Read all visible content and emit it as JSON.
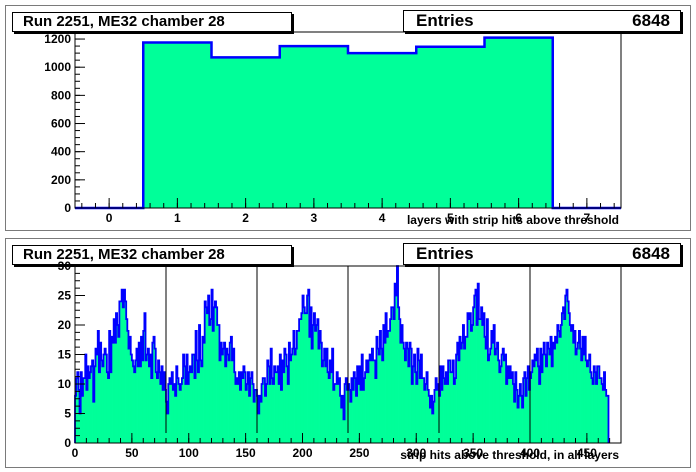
{
  "chart_data": [
    {
      "type": "histogram",
      "title": "Run 2251, ME32 chamber 28",
      "stats": {
        "label": "Entries",
        "value": "6848"
      },
      "xlabel": "layers with strip hits above threshold",
      "ylabel": "",
      "xlim": [
        -0.5,
        7.5
      ],
      "ylim": [
        0,
        1250
      ],
      "x_ticks": [
        0,
        1,
        2,
        3,
        4,
        5,
        6,
        7
      ],
      "y_ticks": [
        0,
        200,
        400,
        600,
        800,
        1000,
        1200
      ],
      "bins": [
        {
          "low": -0.5,
          "high": 0.5,
          "value": 0
        },
        {
          "low": 0.5,
          "high": 1.5,
          "value": 1175
        },
        {
          "low": 1.5,
          "high": 2.5,
          "value": 1070
        },
        {
          "low": 2.5,
          "high": 3.5,
          "value": 1150
        },
        {
          "low": 3.5,
          "high": 4.5,
          "value": 1100
        },
        {
          "low": 4.5,
          "high": 5.5,
          "value": 1145
        },
        {
          "low": 5.5,
          "high": 6.5,
          "value": 1210
        },
        {
          "low": 6.5,
          "high": 7.5,
          "value": 0
        }
      ],
      "fill_color": "#00ff99",
      "line_color": "#0000ff"
    },
    {
      "type": "histogram",
      "title": "Run 2251, ME32 chamber 28",
      "stats": {
        "label": "Entries",
        "value": "6848"
      },
      "xlabel": "strip hits above threshold, in all layers",
      "ylabel": "",
      "xlim": [
        0,
        480
      ],
      "ylim": [
        0,
        30
      ],
      "x_ticks": [
        0,
        50,
        100,
        150,
        200,
        250,
        300,
        350,
        400,
        450
      ],
      "y_ticks": [
        0,
        5,
        10,
        15,
        20,
        25,
        30
      ],
      "vertical_lines": [
        80,
        160,
        240,
        320,
        400
      ],
      "bin_width": 1,
      "values": [
        8,
        11,
        12,
        9,
        5,
        12,
        8,
        11,
        11,
        15,
        9,
        13,
        11,
        12,
        13,
        14,
        7,
        13,
        16,
        15,
        19,
        12,
        17,
        14,
        13,
        15,
        16,
        15,
        12,
        11,
        19,
        12,
        18,
        17,
        21,
        17,
        22,
        20,
        18,
        24,
        24,
        26,
        23,
        26,
        24,
        21,
        19,
        16,
        18,
        15,
        14,
        13,
        12,
        14,
        16,
        13,
        17,
        13,
        18,
        14,
        19,
        22,
        14,
        15,
        16,
        13,
        15,
        11,
        17,
        18,
        16,
        12,
        11,
        14,
        12,
        10,
        13,
        9,
        12,
        9,
        7,
        5,
        10,
        11,
        10,
        12,
        9,
        10,
        8,
        13,
        11,
        10,
        9,
        10,
        11,
        15,
        13,
        10,
        15,
        10,
        12,
        13,
        12,
        15,
        15,
        11,
        19,
        14,
        12,
        20,
        14,
        13,
        18,
        17,
        24,
        23,
        22,
        25,
        20,
        21,
        26,
        19,
        23,
        24,
        23,
        20,
        20,
        14,
        17,
        15,
        16,
        17,
        13,
        16,
        15,
        14,
        17,
        18,
        14,
        16,
        12,
        10,
        11,
        10,
        12,
        9,
        12,
        11,
        13,
        12,
        9,
        10,
        12,
        8,
        11,
        12,
        10,
        7,
        9,
        9,
        8,
        5,
        8,
        7,
        10,
        11,
        11,
        8,
        10,
        14,
        13,
        10,
        16,
        11,
        10,
        13,
        12,
        12,
        13,
        10,
        15,
        9,
        14,
        12,
        16,
        15,
        13,
        10,
        17,
        14,
        15,
        16,
        19,
        15,
        16,
        19,
        19,
        21,
        21,
        22,
        25,
        23,
        22,
        22,
        25,
        26,
        18,
        23,
        16,
        20,
        22,
        19,
        20,
        21,
        16,
        19,
        17,
        13,
        14,
        16,
        13,
        16,
        12,
        11,
        14,
        12,
        16,
        9,
        10,
        10,
        12,
        10,
        11,
        8,
        6,
        8,
        4,
        10,
        11,
        9,
        10,
        9,
        7,
        11,
        9,
        12,
        11,
        8,
        13,
        10,
        13,
        9,
        15,
        9,
        11,
        12,
        14,
        12,
        14,
        15,
        14,
        16,
        14,
        14,
        11,
        18,
        16,
        15,
        19,
        16,
        14,
        20,
        17,
        22,
        18,
        19,
        19,
        21,
        23,
        23,
        21,
        27,
        25,
        30,
        23,
        21,
        17,
        20,
        17,
        16,
        14,
        17,
        16,
        13,
        17,
        16,
        10,
        13,
        15,
        12,
        10,
        16,
        14,
        11,
        15,
        11,
        11,
        9,
        10,
        12,
        9,
        8,
        6,
        8,
        5,
        7,
        9,
        11,
        9,
        10,
        8,
        13,
        9,
        13,
        11,
        10,
        12,
        10,
        14,
        14,
        12,
        12,
        14,
        10,
        11,
        15,
        17,
        14,
        18,
        16,
        17,
        20,
        16,
        18,
        18,
        22,
        21,
        22,
        19,
        20,
        23,
        25,
        26,
        20,
        27,
        21,
        21,
        23,
        20,
        22,
        18,
        16,
        21,
        14,
        15,
        16,
        19,
        17,
        20,
        15,
        16,
        17,
        14,
        12,
        13,
        15,
        16,
        14,
        15,
        10,
        13,
        11,
        13,
        11,
        12,
        10,
        7,
        12,
        9,
        6,
        8,
        10,
        8,
        6,
        11,
        12,
        8,
        11,
        13,
        9,
        11,
        12,
        14,
        13,
        15,
        14,
        16,
        13,
        10,
        16,
        12,
        15,
        17,
        15,
        13,
        17,
        16,
        15,
        18,
        13,
        17,
        16,
        18,
        17,
        20,
        19,
        18,
        20,
        22,
        23,
        21,
        25,
        26,
        24,
        22,
        20,
        19,
        20,
        17,
        19,
        15,
        16,
        17,
        19,
        16,
        14,
        18,
        15,
        18,
        14,
        13,
        14,
        15,
        12,
        11,
        10,
        13,
        12,
        10,
        13,
        13,
        11,
        11,
        10,
        9,
        12,
        9,
        8,
        8
      ],
      "fill_color": "#00ff99",
      "line_color": "#0000ff"
    }
  ]
}
